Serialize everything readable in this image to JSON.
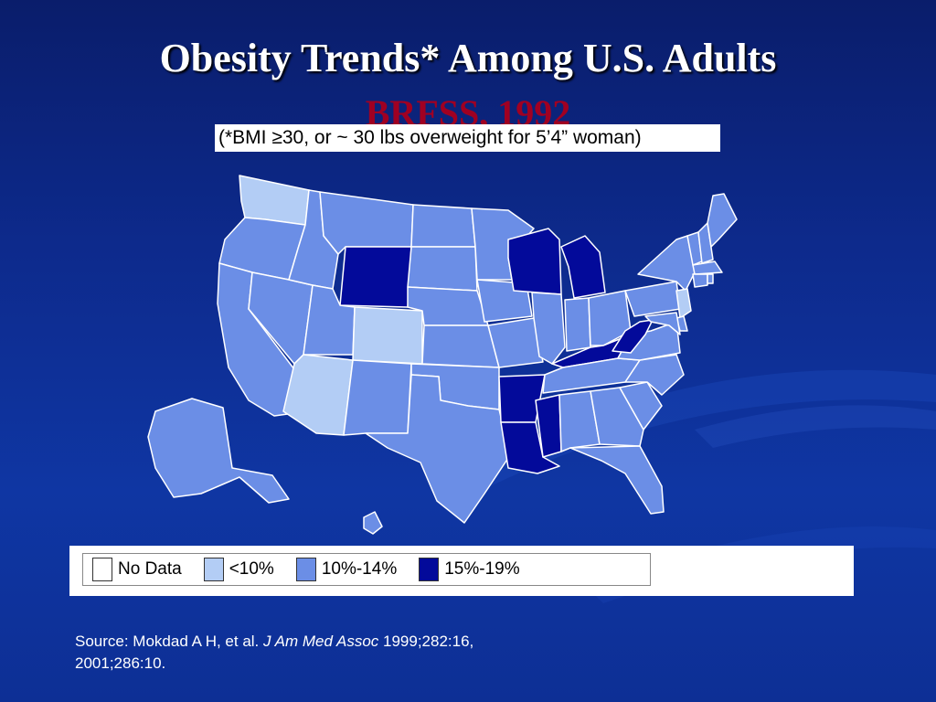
{
  "title": "Obesity Trends* Among U.S. Adults",
  "subtitle": "BRFSS, 1992",
  "note": "(*BMI ≥30, or ~ 30 lbs overweight for 5’4” woman)",
  "colors": {
    "no_data": "#ffffff",
    "lt10": "#b3cdf5",
    "p10_14": "#6b8ee6",
    "p15_19": "#030a9a",
    "border": "#ffffff"
  },
  "legend": [
    {
      "label": "No Data",
      "color": "#ffffff"
    },
    {
      "label": "<10%",
      "color": "#b3cdf5"
    },
    {
      "label": "10%-14%",
      "color": "#6b8ee6"
    },
    {
      "label": "15%-19%",
      "color": "#030a9a"
    }
  ],
  "map_data": {
    "year": 1992,
    "categories": [
      "No Data",
      "<10%",
      "10%-14%",
      "15%-19%"
    ],
    "states": {
      "WA": "<10%",
      "OR": "10%-14%",
      "CA": "10%-14%",
      "NV": "10%-14%",
      "ID": "10%-14%",
      "MT": "10%-14%",
      "WY": "15%-19%",
      "UT": "10%-14%",
      "CO": "<10%",
      "AZ": "<10%",
      "NM": "10%-14%",
      "ND": "10%-14%",
      "SD": "10%-14%",
      "NE": "10%-14%",
      "KS": "10%-14%",
      "OK": "10%-14%",
      "TX": "10%-14%",
      "MN": "10%-14%",
      "IA": "10%-14%",
      "MO": "10%-14%",
      "AR": "15%-19%",
      "LA": "15%-19%",
      "WI": "15%-19%",
      "IL": "10%-14%",
      "MI": "15%-19%",
      "IN": "10%-14%",
      "OH": "10%-14%",
      "KY": "15%-19%",
      "TN": "10%-14%",
      "MS": "15%-19%",
      "AL": "10%-14%",
      "GA": "10%-14%",
      "FL": "10%-14%",
      "SC": "10%-14%",
      "NC": "10%-14%",
      "VA": "10%-14%",
      "WV": "15%-19%",
      "PA": "10%-14%",
      "NY": "10%-14%",
      "NJ": "<10%",
      "DE": "10%-14%",
      "MD": "10%-14%",
      "VT": "10%-14%",
      "NH": "10%-14%",
      "ME": "10%-14%",
      "MA": "10%-14%",
      "CT": "10%-14%",
      "RI": "10%-14%",
      "AK": "10%-14%",
      "HI": "10%-14%"
    }
  },
  "source": {
    "prefix": "Source: Mokdad A H, et al. ",
    "journal": "J Am Med Assoc",
    "suffix": " 1999;282:16,",
    "line2": "2001;286:10."
  }
}
